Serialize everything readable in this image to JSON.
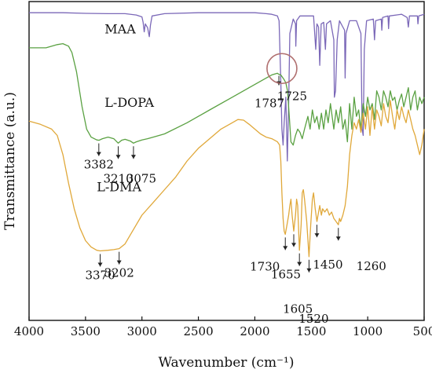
{
  "chart_data": {
    "type": "line",
    "xlabel": "Wavenumber (cm⁻¹)",
    "ylabel": "Transmittance (a.u.)",
    "xlim": [
      4000,
      500
    ],
    "x_reversed": true,
    "x_ticks": [
      4000,
      3500,
      3000,
      2500,
      2000,
      1500,
      1000,
      500
    ],
    "y_ticks_shown": false,
    "grid": false,
    "series": [
      {
        "name": "MAA",
        "color": "#7b68b8",
        "points": [
          [
            4000,
            0.965
          ],
          [
            3700,
            0.965
          ],
          [
            3500,
            0.963
          ],
          [
            3300,
            0.962
          ],
          [
            3150,
            0.962
          ],
          [
            3050,
            0.958
          ],
          [
            3000,
            0.952
          ],
          [
            2990,
            0.935
          ],
          [
            2980,
            0.905
          ],
          [
            2970,
            0.93
          ],
          [
            2950,
            0.918
          ],
          [
            2935,
            0.89
          ],
          [
            2925,
            0.925
          ],
          [
            2910,
            0.955
          ],
          [
            2800,
            0.962
          ],
          [
            2500,
            0.965
          ],
          [
            2000,
            0.965
          ],
          [
            1900,
            0.962
          ],
          [
            1850,
            0.96
          ],
          [
            1800,
            0.955
          ],
          [
            1785,
            0.94
          ],
          [
            1770,
            0.75
          ],
          [
            1760,
            0.6
          ],
          [
            1750,
            0.55
          ],
          [
            1740,
            0.62
          ],
          [
            1725,
            0.7
          ],
          [
            1712,
            0.5
          ],
          [
            1700,
            0.68
          ],
          [
            1690,
            0.9
          ],
          [
            1660,
            0.945
          ],
          [
            1640,
            0.93
          ],
          [
            1637,
            0.86
          ],
          [
            1630,
            0.94
          ],
          [
            1600,
            0.955
          ],
          [
            1480,
            0.955
          ],
          [
            1460,
            0.85
          ],
          [
            1450,
            0.93
          ],
          [
            1435,
            0.92
          ],
          [
            1425,
            0.8
          ],
          [
            1412,
            0.93
          ],
          [
            1390,
            0.935
          ],
          [
            1375,
            0.85
          ],
          [
            1365,
            0.93
          ],
          [
            1330,
            0.94
          ],
          [
            1300,
            0.88
          ],
          [
            1295,
            0.7
          ],
          [
            1285,
            0.72
          ],
          [
            1270,
            0.88
          ],
          [
            1250,
            0.94
          ],
          [
            1205,
            0.91
          ],
          [
            1200,
            0.76
          ],
          [
            1192,
            0.9
          ],
          [
            1160,
            0.94
          ],
          [
            1100,
            0.94
          ],
          [
            1060,
            0.9
          ],
          [
            1050,
            0.6
          ],
          [
            1040,
            0.58
          ],
          [
            1030,
            0.85
          ],
          [
            1010,
            0.94
          ],
          [
            950,
            0.945
          ],
          [
            940,
            0.88
          ],
          [
            930,
            0.94
          ],
          [
            880,
            0.945
          ],
          [
            875,
            0.91
          ],
          [
            868,
            0.95
          ],
          [
            820,
            0.955
          ],
          [
            815,
            0.915
          ],
          [
            808,
            0.955
          ],
          [
            700,
            0.96
          ],
          [
            650,
            0.95
          ],
          [
            640,
            0.92
          ],
          [
            630,
            0.955
          ],
          [
            560,
            0.955
          ],
          [
            555,
            0.93
          ],
          [
            548,
            0.955
          ],
          [
            500,
            0.96
          ]
        ]
      },
      {
        "name": "L-DOPA",
        "color": "#5aa142",
        "points": [
          [
            4000,
            0.855
          ],
          [
            3850,
            0.855
          ],
          [
            3750,
            0.865
          ],
          [
            3700,
            0.868
          ],
          [
            3650,
            0.86
          ],
          [
            3620,
            0.84
          ],
          [
            3580,
            0.78
          ],
          [
            3530,
            0.67
          ],
          [
            3490,
            0.6
          ],
          [
            3450,
            0.575
          ],
          [
            3400,
            0.566
          ],
          [
            3380,
            0.565
          ],
          [
            3350,
            0.57
          ],
          [
            3300,
            0.575
          ],
          [
            3250,
            0.57
          ],
          [
            3210,
            0.556
          ],
          [
            3180,
            0.565
          ],
          [
            3150,
            0.568
          ],
          [
            3100,
            0.562
          ],
          [
            3075,
            0.556
          ],
          [
            3050,
            0.56
          ],
          [
            3000,
            0.566
          ],
          [
            2950,
            0.57
          ],
          [
            2900,
            0.575
          ],
          [
            2800,
            0.585
          ],
          [
            2600,
            0.62
          ],
          [
            2400,
            0.66
          ],
          [
            2200,
            0.7
          ],
          [
            2000,
            0.74
          ],
          [
            1900,
            0.76
          ],
          [
            1850,
            0.77
          ],
          [
            1800,
            0.775
          ],
          [
            1787,
            0.772
          ],
          [
            1770,
            0.77
          ],
          [
            1740,
            0.755
          ],
          [
            1725,
            0.745
          ],
          [
            1710,
            0.72
          ],
          [
            1695,
            0.64
          ],
          [
            1680,
            0.56
          ],
          [
            1660,
            0.55
          ],
          [
            1640,
            0.58
          ],
          [
            1620,
            0.6
          ],
          [
            1600,
            0.59
          ],
          [
            1580,
            0.57
          ],
          [
            1560,
            0.6
          ],
          [
            1530,
            0.64
          ],
          [
            1510,
            0.6
          ],
          [
            1490,
            0.66
          ],
          [
            1470,
            0.62
          ],
          [
            1450,
            0.64
          ],
          [
            1430,
            0.6
          ],
          [
            1410,
            0.65
          ],
          [
            1390,
            0.6
          ],
          [
            1370,
            0.66
          ],
          [
            1350,
            0.62
          ],
          [
            1330,
            0.68
          ],
          [
            1300,
            0.6
          ],
          [
            1280,
            0.66
          ],
          [
            1260,
            0.62
          ],
          [
            1240,
            0.67
          ],
          [
            1220,
            0.6
          ],
          [
            1200,
            0.63
          ],
          [
            1180,
            0.56
          ],
          [
            1160,
            0.68
          ],
          [
            1140,
            0.6
          ],
          [
            1120,
            0.7
          ],
          [
            1100,
            0.64
          ],
          [
            1080,
            0.66
          ],
          [
            1060,
            0.6
          ],
          [
            1040,
            0.68
          ],
          [
            1020,
            0.64
          ],
          [
            1000,
            0.7
          ],
          [
            980,
            0.66
          ],
          [
            960,
            0.68
          ],
          [
            940,
            0.63
          ],
          [
            920,
            0.72
          ],
          [
            900,
            0.7
          ],
          [
            880,
            0.66
          ],
          [
            860,
            0.72
          ],
          [
            840,
            0.7
          ],
          [
            820,
            0.67
          ],
          [
            800,
            0.72
          ],
          [
            780,
            0.69
          ],
          [
            760,
            0.7
          ],
          [
            740,
            0.66
          ],
          [
            720,
            0.69
          ],
          [
            700,
            0.71
          ],
          [
            680,
            0.67
          ],
          [
            660,
            0.7
          ],
          [
            640,
            0.73
          ],
          [
            620,
            0.66
          ],
          [
            600,
            0.7
          ],
          [
            580,
            0.72
          ],
          [
            560,
            0.66
          ],
          [
            540,
            0.7
          ],
          [
            520,
            0.68
          ],
          [
            500,
            0.7
          ]
        ]
      },
      {
        "name": "L-DMA",
        "color": "#e0a83a",
        "points": [
          [
            4000,
            0.625
          ],
          [
            3900,
            0.615
          ],
          [
            3800,
            0.6
          ],
          [
            3750,
            0.58
          ],
          [
            3700,
            0.52
          ],
          [
            3650,
            0.43
          ],
          [
            3600,
            0.35
          ],
          [
            3550,
            0.29
          ],
          [
            3500,
            0.25
          ],
          [
            3450,
            0.23
          ],
          [
            3400,
            0.22
          ],
          [
            3370,
            0.218
          ],
          [
            3300,
            0.22
          ],
          [
            3250,
            0.222
          ],
          [
            3202,
            0.225
          ],
          [
            3150,
            0.24
          ],
          [
            3100,
            0.27
          ],
          [
            3050,
            0.3
          ],
          [
            3000,
            0.33
          ],
          [
            2900,
            0.37
          ],
          [
            2800,
            0.41
          ],
          [
            2700,
            0.45
          ],
          [
            2600,
            0.5
          ],
          [
            2500,
            0.54
          ],
          [
            2400,
            0.57
          ],
          [
            2300,
            0.6
          ],
          [
            2200,
            0.62
          ],
          [
            2150,
            0.63
          ],
          [
            2100,
            0.628
          ],
          [
            2050,
            0.615
          ],
          [
            2000,
            0.6
          ],
          [
            1950,
            0.585
          ],
          [
            1900,
            0.575
          ],
          [
            1850,
            0.57
          ],
          [
            1800,
            0.56
          ],
          [
            1780,
            0.55
          ],
          [
            1770,
            0.5
          ],
          [
            1760,
            0.4
          ],
          [
            1750,
            0.32
          ],
          [
            1740,
            0.28
          ],
          [
            1730,
            0.27
          ],
          [
            1715,
            0.3
          ],
          [
            1700,
            0.33
          ],
          [
            1690,
            0.36
          ],
          [
            1680,
            0.38
          ],
          [
            1670,
            0.33
          ],
          [
            1655,
            0.28
          ],
          [
            1640,
            0.33
          ],
          [
            1630,
            0.38
          ],
          [
            1620,
            0.36
          ],
          [
            1605,
            0.22
          ],
          [
            1590,
            0.3
          ],
          [
            1580,
            0.4
          ],
          [
            1570,
            0.41
          ],
          [
            1560,
            0.38
          ],
          [
            1540,
            0.31
          ],
          [
            1520,
            0.2
          ],
          [
            1505,
            0.3
          ],
          [
            1490,
            0.38
          ],
          [
            1480,
            0.4
          ],
          [
            1465,
            0.35
          ],
          [
            1450,
            0.31
          ],
          [
            1440,
            0.33
          ],
          [
            1425,
            0.36
          ],
          [
            1410,
            0.33
          ],
          [
            1400,
            0.35
          ],
          [
            1380,
            0.34
          ],
          [
            1360,
            0.35
          ],
          [
            1340,
            0.33
          ],
          [
            1320,
            0.34
          ],
          [
            1300,
            0.32
          ],
          [
            1280,
            0.31
          ],
          [
            1260,
            0.3
          ],
          [
            1250,
            0.32
          ],
          [
            1240,
            0.31
          ],
          [
            1220,
            0.33
          ],
          [
            1200,
            0.36
          ],
          [
            1180,
            0.42
          ],
          [
            1160,
            0.52
          ],
          [
            1140,
            0.58
          ],
          [
            1120,
            0.62
          ],
          [
            1100,
            0.6
          ],
          [
            1080,
            0.63
          ],
          [
            1060,
            0.59
          ],
          [
            1040,
            0.65
          ],
          [
            1020,
            0.6
          ],
          [
            1000,
            0.67
          ],
          [
            980,
            0.58
          ],
          [
            960,
            0.67
          ],
          [
            940,
            0.6
          ],
          [
            920,
            0.66
          ],
          [
            900,
            0.64
          ],
          [
            880,
            0.61
          ],
          [
            860,
            0.68
          ],
          [
            840,
            0.64
          ],
          [
            820,
            0.62
          ],
          [
            800,
            0.69
          ],
          [
            780,
            0.64
          ],
          [
            760,
            0.6
          ],
          [
            740,
            0.66
          ],
          [
            720,
            0.63
          ],
          [
            700,
            0.67
          ],
          [
            680,
            0.64
          ],
          [
            660,
            0.62
          ],
          [
            640,
            0.66
          ],
          [
            620,
            0.63
          ],
          [
            600,
            0.6
          ],
          [
            580,
            0.58
          ],
          [
            560,
            0.55
          ],
          [
            540,
            0.52
          ],
          [
            520,
            0.55
          ],
          [
            500,
            0.6
          ]
        ]
      }
    ],
    "series_labels": [
      {
        "text": "MAA",
        "x": 3330,
        "y": 0.9
      },
      {
        "text": "L-DOPA",
        "x": 3330,
        "y": 0.67
      },
      {
        "text": "L-DMA",
        "x": 3400,
        "y": 0.405
      }
    ],
    "peak_annotations": [
      {
        "label": "3382",
        "x": 3382,
        "series": "L-DOPA"
      },
      {
        "label": "3210",
        "x": 3210,
        "series": "L-DOPA"
      },
      {
        "label": "3075",
        "x": 3075,
        "series": "L-DOPA"
      },
      {
        "label": "1787",
        "x": 1787,
        "series": "L-DOPA"
      },
      {
        "label": "1725",
        "x": 1725,
        "series": "L-DOPA"
      },
      {
        "label": "3370",
        "x": 3370,
        "series": "L-DMA"
      },
      {
        "label": "3202",
        "x": 3202,
        "series": "L-DMA"
      },
      {
        "label": "1730",
        "x": 1730,
        "series": "L-DMA"
      },
      {
        "label": "1655",
        "x": 1655,
        "series": "L-DMA"
      },
      {
        "label": "1605",
        "x": 1605,
        "series": "L-DMA"
      },
      {
        "label": "1520",
        "x": 1520,
        "series": "L-DMA"
      },
      {
        "label": "1450",
        "x": 1450,
        "series": "L-DMA"
      },
      {
        "label": "1260",
        "x": 1260,
        "series": "L-DMA"
      }
    ],
    "highlight_circle": {
      "x": 1760,
      "y": 0.79,
      "color": "#b06f6f"
    }
  }
}
